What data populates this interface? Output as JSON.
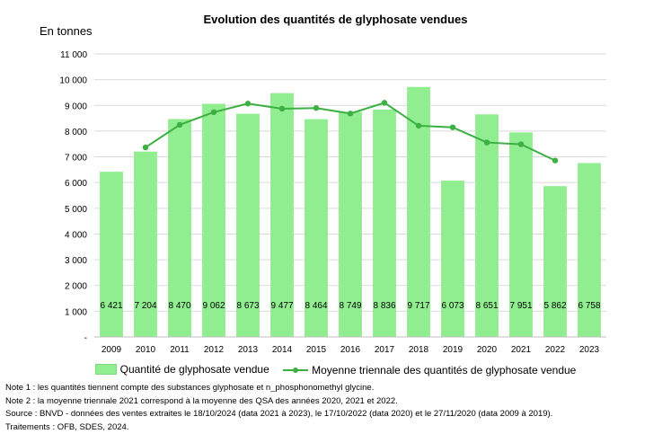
{
  "chart_data": {
    "type": "bar",
    "title": "Evolution des quantités de glyphosate vendues",
    "ylabel": "En tonnes",
    "xlabel": "",
    "categories": [
      "2009",
      "2010",
      "2011",
      "2012",
      "2013",
      "2014",
      "2015",
      "2016",
      "2017",
      "2018",
      "2019",
      "2020",
      "2021",
      "2022",
      "2023"
    ],
    "ylim": [
      0,
      11000
    ],
    "yticks": [
      0,
      1000,
      2000,
      3000,
      4000,
      5000,
      6000,
      7000,
      8000,
      9000,
      10000,
      11000
    ],
    "ytick_labels": [
      "-",
      "1 000",
      "2 000",
      "3 000",
      "4 000",
      "5 000",
      "6 000",
      "7 000",
      "8 000",
      "9 000",
      "10 000",
      "11 000"
    ],
    "grid": true,
    "legend_position": "bottom",
    "series": [
      {
        "name": "Quantité de glyphosate vendue",
        "kind": "bar",
        "color": "#90ee90",
        "values": [
          6421,
          7204,
          8470,
          9062,
          8673,
          9477,
          8464,
          8749,
          8836,
          9717,
          6073,
          8651,
          7951,
          5862,
          6758
        ],
        "data_labels": [
          "6 421",
          "7 204",
          "8 470",
          "9 062",
          "8 673",
          "9 477",
          "8 464",
          "8 749",
          "8 836",
          "9 717",
          "6 073",
          "8 651",
          "7 951",
          "5 862",
          "6 758"
        ]
      },
      {
        "name": "Moyenne triennale des quantités de glyphosate vendue",
        "kind": "line",
        "color": "#3cb043",
        "values": [
          null,
          7365,
          8245,
          8735,
          9071,
          8871,
          8897,
          8683,
          9101,
          8209,
          8147,
          7558,
          7488,
          6857,
          null
        ]
      }
    ]
  },
  "notes": [
    "Note 1 : les quantités tiennent compte des substances glyphosate et n_phosphonomethyl glycine.",
    "Note 2 : la moyenne triennale 2021 correspond à la moyenne des QSA des années 2020, 2021 et 2022.",
    "Source : BNVD - données des ventes extraites le 18/10/2024 (data 2021 à 2023), le 17/10/2022 (data 2020) et le 27/11/2020 (data 2009 à 2019).",
    "Traitements : OFB, SDES, 2024."
  ]
}
